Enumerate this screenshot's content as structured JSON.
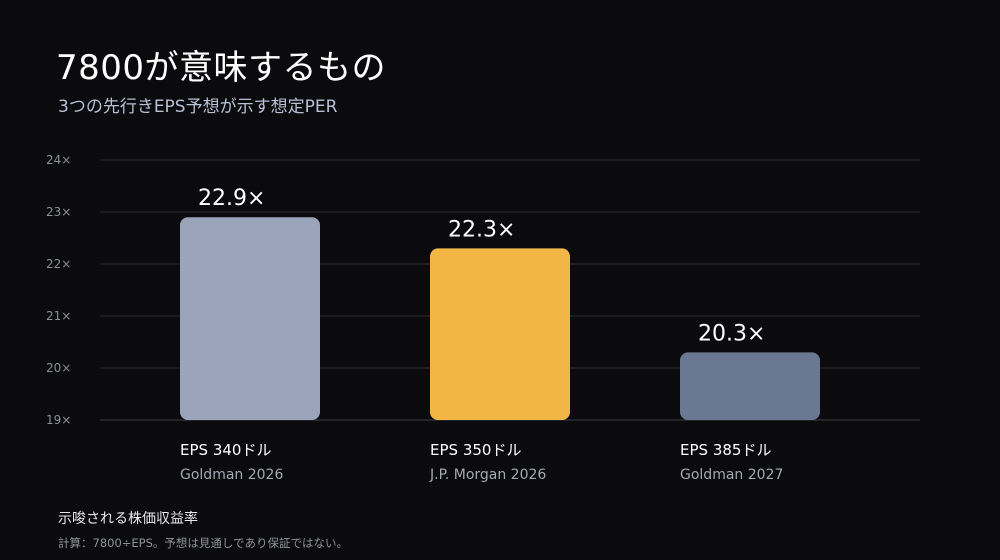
{
  "header": {
    "title": "7800が意味するもの",
    "subtitle": "3つの先行きEPS予想が示す想定PER"
  },
  "chart_data": {
    "type": "bar",
    "title": "7800が意味するもの",
    "subtitle": "3つの先行きEPS予想が示す想定PER",
    "categories": [
      "EPS 340ドル",
      "EPS 350ドル",
      "EPS 385ドル"
    ],
    "sublabels": [
      "Goldman 2026",
      "J.P. Morgan 2026",
      "Goldman 2027"
    ],
    "values": [
      22.9,
      22.3,
      20.3
    ],
    "value_labels": [
      "22.9×",
      "22.3×",
      "20.3×"
    ],
    "colors": [
      "#9aa5bb",
      "#f2b646",
      "#6b7891"
    ],
    "ylim": [
      19,
      24
    ],
    "yticks": [
      19,
      20,
      21,
      22,
      23,
      24
    ],
    "ytick_labels": [
      "19×",
      "20×",
      "21×",
      "22×",
      "23×",
      "24×"
    ],
    "grid": true,
    "xlabel": "",
    "ylabel": ""
  },
  "footer": {
    "title": "示唆される株価収益率",
    "note": "計算：7800÷EPS。予想は見通しであり保証ではない。"
  }
}
